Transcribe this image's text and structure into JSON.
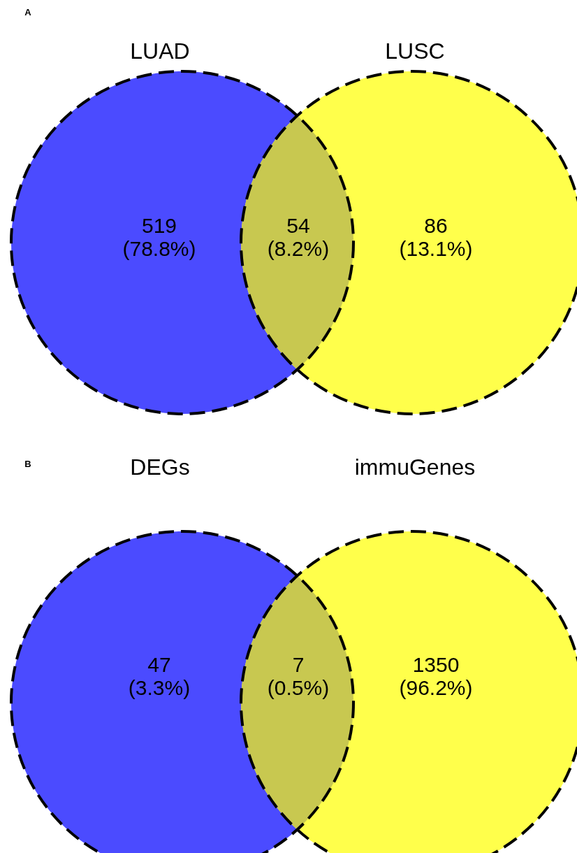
{
  "chart_data": [
    {
      "type": "other",
      "annotations": [
        "A",
        "(78.8%)",
        "(8.2%)",
        "(13.1%)"
      ],
      "categories": [
        "LUAD",
        null,
        "LUSC"
      ],
      "values": [
        519,
        54,
        86
      ],
      "data_labels": true,
      "colors": [
        "#4b4bff",
        "#c8c850",
        "#ffff4b"
      ]
    },
    {
      "type": "other",
      "annotations": [
        "B",
        "(3.3%)",
        "(0.5%)",
        "(96.2%)"
      ],
      "categories": [
        "DEGs",
        null,
        "immuGenes"
      ],
      "values": [
        47,
        7,
        1350
      ],
      "data_labels": true,
      "colors": [
        "#4b4bff",
        "#c8c850",
        "#ffff4b"
      ]
    }
  ]
}
